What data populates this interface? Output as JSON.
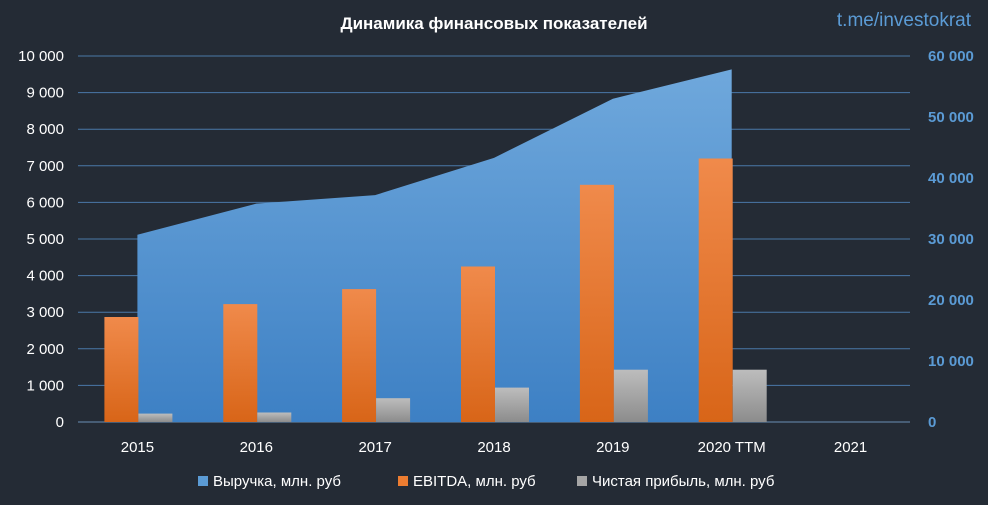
{
  "chart_data": {
    "type": "bar",
    "title": "Динамика финансовых показателей",
    "watermark": "t.me/investokrat",
    "categories": [
      "2015",
      "2016",
      "2017",
      "2018",
      "2019",
      "2020 TTM",
      "2021"
    ],
    "left_axis": {
      "range": [
        0,
        10000
      ],
      "ticks": [
        0,
        1000,
        2000,
        3000,
        4000,
        5000,
        6000,
        7000,
        8000,
        9000,
        10000
      ],
      "tick_labels": [
        "0",
        "1 000",
        "2 000",
        "3 000",
        "4 000",
        "5 000",
        "6 000",
        "7 000",
        "8 000",
        "9 000",
        "10 000"
      ]
    },
    "right_axis": {
      "range": [
        0,
        60000
      ],
      "ticks": [
        0,
        10000,
        20000,
        30000,
        40000,
        50000,
        60000
      ],
      "tick_labels": [
        "0",
        "10 000",
        "20 000",
        "30 000",
        "40 000",
        "50 000",
        "60 000"
      ]
    },
    "grid": true,
    "legend_position": "bottom",
    "series": [
      {
        "name": "Выручка, млн. руб",
        "type": "area",
        "axis": "right",
        "color": "#5b9bd5",
        "values": [
          30700,
          35800,
          37200,
          43300,
          53000,
          57800,
          null
        ]
      },
      {
        "name": "EBITDA, млн. руб",
        "type": "bar",
        "axis": "left",
        "color": "#ed7d31",
        "values": [
          2870,
          3220,
          3630,
          4250,
          6480,
          7200,
          null
        ]
      },
      {
        "name": "Чистая прибыль, млн. руб",
        "type": "bar",
        "axis": "left",
        "color": "#a5a5a5",
        "values": [
          230,
          260,
          650,
          940,
          1430,
          1430,
          null
        ]
      }
    ]
  }
}
